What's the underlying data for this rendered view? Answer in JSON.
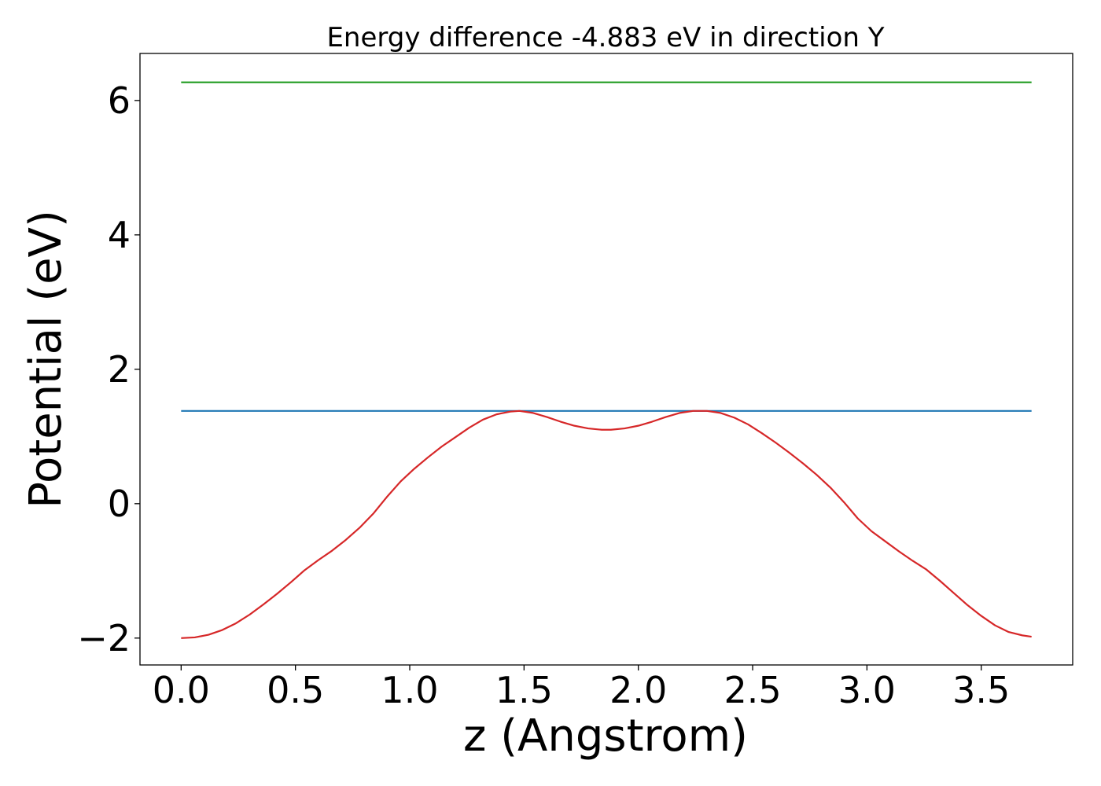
{
  "chart_data": {
    "type": "line",
    "title": "Energy difference -4.883 eV in direction Y",
    "xlabel": "z (Angstrom)",
    "ylabel": "Potential (eV)",
    "xlim": [
      -0.18,
      3.9
    ],
    "ylim": [
      -2.4,
      6.7
    ],
    "xticks": [
      0.0,
      0.5,
      1.0,
      1.5,
      2.0,
      2.5,
      3.0,
      3.5
    ],
    "xtick_labels": [
      "0.0",
      "0.5",
      "1.0",
      "1.5",
      "2.0",
      "2.5",
      "3.0",
      "3.5"
    ],
    "yticks": [
      -2,
      0,
      2,
      4,
      6
    ],
    "ytick_labels": [
      "−2",
      "0",
      "2",
      "4",
      "6"
    ],
    "grid": false,
    "series": [
      {
        "color": "#2ca02c",
        "style": "line",
        "x": [
          0.0,
          3.72
        ],
        "y": [
          6.27,
          6.27
        ]
      },
      {
        "color": "#1f77b4",
        "style": "line",
        "x": [
          0.0,
          3.72
        ],
        "y": [
          1.38,
          1.38
        ]
      },
      {
        "color": "#d62728",
        "style": "line",
        "x": [
          0.0,
          0.06,
          0.12,
          0.18,
          0.24,
          0.3,
          0.36,
          0.42,
          0.48,
          0.54,
          0.6,
          0.66,
          0.72,
          0.78,
          0.84,
          0.9,
          0.96,
          1.02,
          1.08,
          1.14,
          1.2,
          1.26,
          1.32,
          1.38,
          1.44,
          1.48,
          1.54,
          1.6,
          1.66,
          1.72,
          1.78,
          1.84,
          1.88,
          1.94,
          2.0,
          2.06,
          2.12,
          2.18,
          2.24,
          2.3,
          2.36,
          2.42,
          2.48,
          2.54,
          2.6,
          2.66,
          2.72,
          2.78,
          2.84,
          2.9,
          2.96,
          3.02,
          3.08,
          3.14,
          3.2,
          3.26,
          3.32,
          3.38,
          3.44,
          3.5,
          3.56,
          3.62,
          3.68,
          3.72
        ],
        "y": [
          -2.0,
          -1.99,
          -1.95,
          -1.88,
          -1.78,
          -1.65,
          -1.5,
          -1.34,
          -1.17,
          -0.99,
          -0.84,
          -0.7,
          -0.54,
          -0.36,
          -0.15,
          0.1,
          0.33,
          0.52,
          0.69,
          0.85,
          0.99,
          1.13,
          1.25,
          1.33,
          1.37,
          1.38,
          1.35,
          1.29,
          1.22,
          1.16,
          1.12,
          1.1,
          1.1,
          1.12,
          1.16,
          1.22,
          1.29,
          1.35,
          1.38,
          1.38,
          1.35,
          1.28,
          1.18,
          1.05,
          0.91,
          0.76,
          0.6,
          0.43,
          0.24,
          0.02,
          -0.22,
          -0.41,
          -0.56,
          -0.71,
          -0.85,
          -0.98,
          -1.15,
          -1.33,
          -1.51,
          -1.67,
          -1.81,
          -1.91,
          -1.96,
          -1.98
        ]
      }
    ]
  }
}
